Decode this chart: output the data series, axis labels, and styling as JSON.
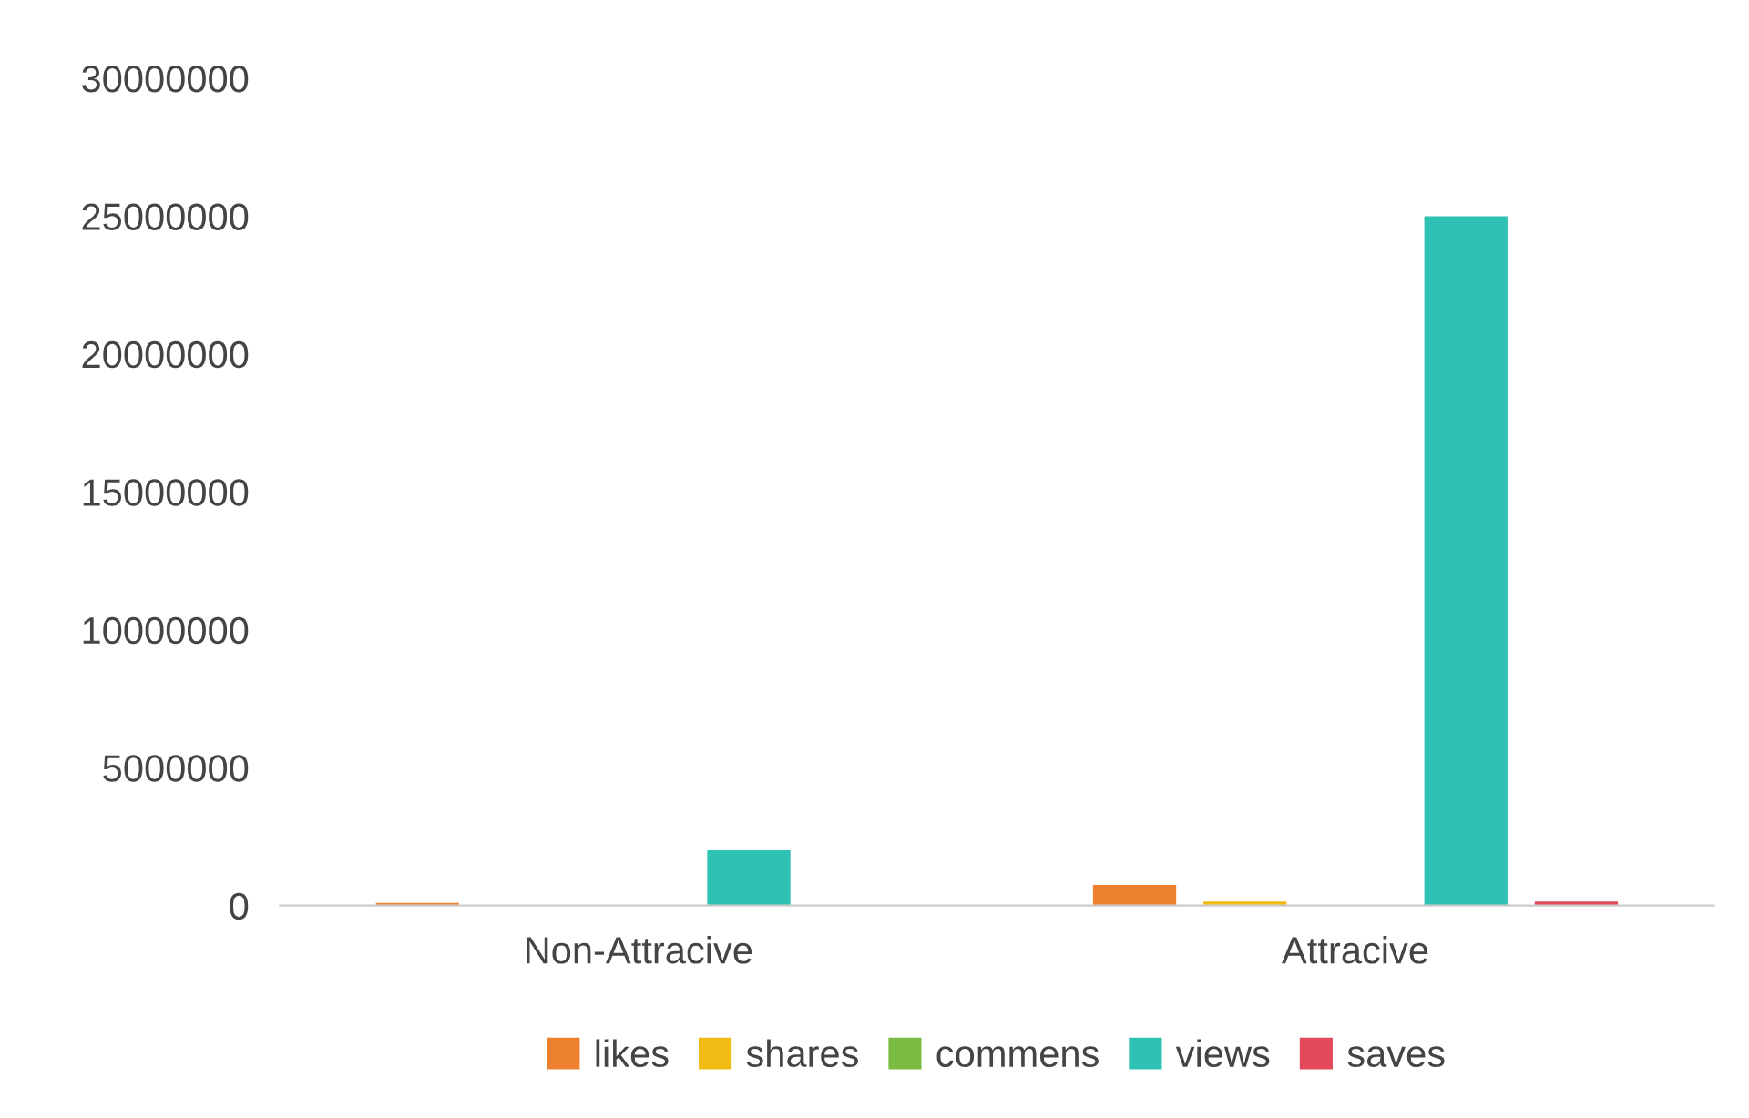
{
  "chart_data": {
    "type": "bar",
    "categories": [
      "Non-Attracive",
      "Attracive"
    ],
    "series": [
      {
        "name": "likes",
        "color": "#ee8130",
        "values": [
          100000,
          750000
        ]
      },
      {
        "name": "shares",
        "color": "#f2bb14",
        "values": [
          0,
          150000
        ]
      },
      {
        "name": "commens",
        "color": "#79bb43",
        "values": [
          0,
          0
        ]
      },
      {
        "name": "views",
        "color": "#2ec2b4",
        "values": [
          2000000,
          25000000
        ]
      },
      {
        "name": "saves",
        "color": "#e24a5c",
        "values": [
          0,
          150000
        ]
      }
    ],
    "ylim": [
      0,
      30000000
    ],
    "yticks": [
      0,
      5000000,
      10000000,
      15000000,
      20000000,
      25000000,
      30000000
    ],
    "grid": false,
    "legend": "bottom"
  }
}
